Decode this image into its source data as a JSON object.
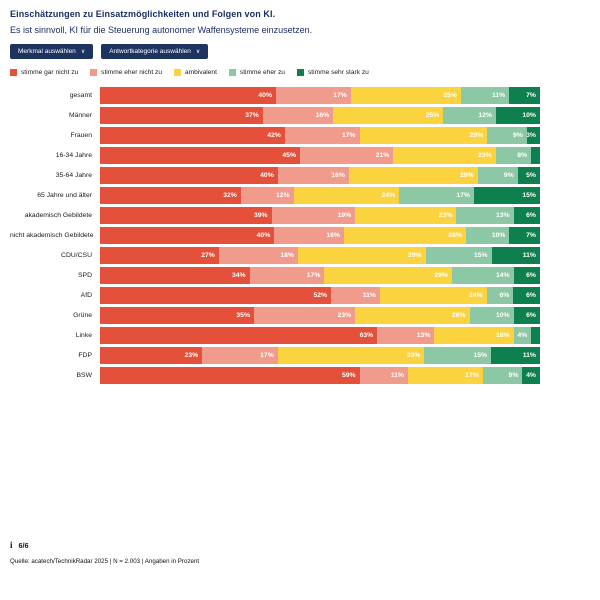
{
  "header": {
    "title": "Einschätzungen zu Einsatzmöglichkeiten und Folgen von KI.",
    "subtitle": "Es ist sinnvoll, KI für die Steuerung autonomer Waffensysteme einzusetzen."
  },
  "controls": {
    "merkmal_button_label": "Merkmal auswählen",
    "antwortkategorie_button_label": "Antwortkategorie auswählen"
  },
  "icons": {
    "chevron_down": "∨",
    "info": "i"
  },
  "colors": {
    "navy_title": "#1b2f66",
    "navy_button": "#1c345f",
    "red": "#e5503b",
    "salmon": "#f09b8c",
    "yellow": "#fbd33f",
    "light_green": "#8cc8a5",
    "dark_green": "#0e7f4f"
  },
  "legend": [
    {
      "label": "stimme gar nicht zu",
      "color": "#e5503b"
    },
    {
      "label": "stimme eher nicht zu",
      "color": "#f09b8c"
    },
    {
      "label": "ambivalent",
      "color": "#fbd33f"
    },
    {
      "label": "stimme eher zu",
      "color": "#8cc8a5"
    },
    {
      "label": "stimme sehr stark zu",
      "color": "#0e7f4f"
    }
  ],
  "chart_data": {
    "type": "bar",
    "stacked": true,
    "orientation": "horizontal",
    "unit": "percent",
    "min_label_value": 3,
    "categories": [
      "gesamt",
      "Männer",
      "Frauen",
      "16-34 Jahre",
      "35-64 Jahre",
      "65 Jahre und älter",
      "akademisch Gebildete",
      "nicht akademisch Gebildete",
      "CDU/CSU",
      "SPD",
      "AfD",
      "Grüne",
      "Linke",
      "FDP",
      "BSW"
    ],
    "series": [
      {
        "name": "stimme gar nicht zu",
        "color": "#e5503b",
        "values": [
          40,
          37,
          42,
          45,
          40,
          32,
          39,
          40,
          27,
          34,
          52,
          35,
          63,
          23,
          59
        ]
      },
      {
        "name": "stimme eher nicht zu",
        "color": "#f09b8c",
        "values": [
          17,
          16,
          17,
          21,
          16,
          12,
          19,
          16,
          18,
          17,
          11,
          23,
          13,
          17,
          11
        ]
      },
      {
        "name": "ambivalent",
        "color": "#fbd33f",
        "values": [
          25,
          25,
          29,
          23,
          29,
          24,
          23,
          28,
          29,
          29,
          24,
          26,
          18,
          33,
          17
        ]
      },
      {
        "name": "stimme eher zu",
        "color": "#8cc8a5",
        "values": [
          11,
          12,
          9,
          8,
          9,
          17,
          13,
          10,
          15,
          14,
          6,
          10,
          4,
          15,
          9
        ]
      },
      {
        "name": "stimme sehr stark zu",
        "color": "#0e7f4f",
        "values": [
          7,
          10,
          3,
          2,
          5,
          15,
          6,
          7,
          11,
          6,
          6,
          6,
          2,
          11,
          4
        ]
      }
    ]
  },
  "footer": {
    "page_indicator": "6/6",
    "source": "Quelle: acatech/TechnikRadar 2025 | N = 2.003 | Angaben in Prozent"
  }
}
